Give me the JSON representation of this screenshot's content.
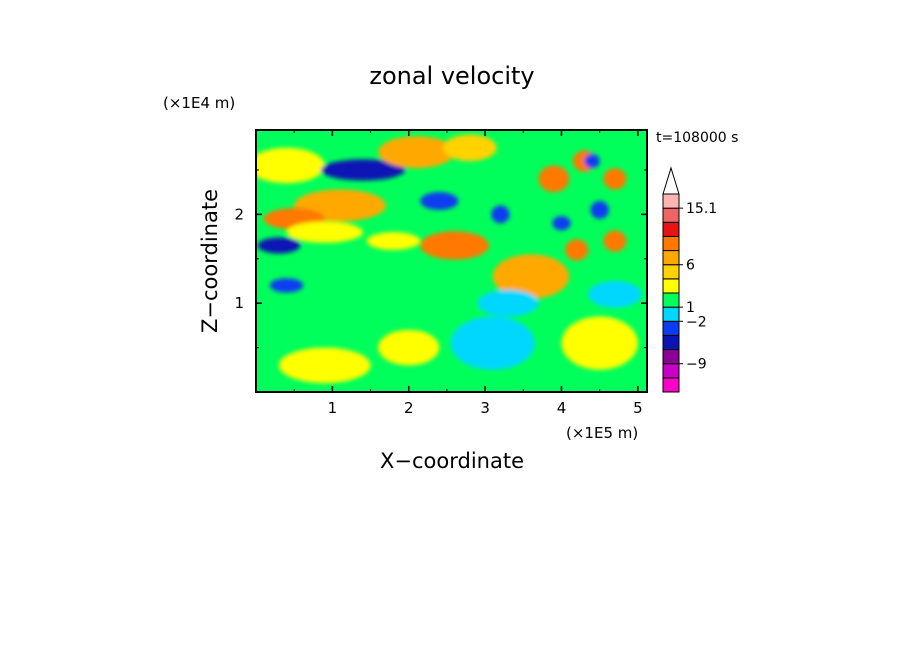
{
  "chart_data": {
    "type": "heatmap",
    "title": "zonal velocity",
    "xlabel": "X−coordinate",
    "ylabel": "Z−coordinate",
    "x_unit": "(×1E5 m)",
    "y_unit": "(×1E4 m)",
    "time_label": "t=108000 s",
    "x_ticks": [
      "1",
      "2",
      "3",
      "4",
      "5"
    ],
    "y_ticks": [
      "1",
      "2"
    ],
    "xlim": [
      0,
      5.12
    ],
    "ylim": [
      0,
      2.95
    ],
    "colorbar": {
      "tick_labels": [
        "15.1",
        "6",
        "1",
        "−2",
        "−9"
      ],
      "bins": [
        {
          "color": "#ff00c8"
        },
        {
          "color": "#c800c8"
        },
        {
          "color": "#8c0096"
        },
        {
          "color": "#0a14b4"
        },
        {
          "color": "#0a3cf0"
        },
        {
          "color": "#00d7ff"
        },
        {
          "color": "#00ff5a"
        },
        {
          "color": "#ffff00"
        },
        {
          "color": "#ffd200"
        },
        {
          "color": "#ffa800"
        },
        {
          "color": "#ff7800"
        },
        {
          "color": "#e61414"
        },
        {
          "color": "#f06464"
        },
        {
          "color": "#ffb4b4"
        }
      ],
      "extend_max_color": "#ffffff"
    },
    "field": {
      "background_color": "#00ff5a",
      "features": [
        {
          "x": 0.4,
          "z": 2.55,
          "sx": 0.5,
          "sz": 0.2,
          "level": 7
        },
        {
          "x": 1.1,
          "z": 2.1,
          "sx": 0.6,
          "sz": 0.18,
          "level": 9
        },
        {
          "x": 0.5,
          "z": 1.95,
          "sx": 0.4,
          "sz": 0.12,
          "level": 10
        },
        {
          "x": 1.4,
          "z": 2.5,
          "sx": 0.55,
          "sz": 0.12,
          "level": 3
        },
        {
          "x": 2.4,
          "z": 2.15,
          "sx": 0.25,
          "sz": 0.1,
          "level": 4
        },
        {
          "x": 0.3,
          "z": 1.65,
          "sx": 0.28,
          "sz": 0.09,
          "level": 3
        },
        {
          "x": 0.4,
          "z": 1.2,
          "sx": 0.22,
          "sz": 0.08,
          "level": 4
        },
        {
          "x": 2.1,
          "z": 2.7,
          "sx": 0.5,
          "sz": 0.18,
          "level": 9
        },
        {
          "x": 2.8,
          "z": 2.75,
          "sx": 0.35,
          "sz": 0.15,
          "level": 8
        },
        {
          "x": 2.6,
          "z": 1.65,
          "sx": 0.45,
          "sz": 0.16,
          "level": 10
        },
        {
          "x": 3.6,
          "z": 1.3,
          "sx": 0.5,
          "sz": 0.25,
          "level": 9
        },
        {
          "x": 3.9,
          "z": 2.4,
          "sx": 0.2,
          "sz": 0.15,
          "level": 10
        },
        {
          "x": 4.3,
          "z": 2.6,
          "sx": 0.15,
          "sz": 0.12,
          "level": 10
        },
        {
          "x": 4.7,
          "z": 2.4,
          "sx": 0.15,
          "sz": 0.12,
          "level": 10
        },
        {
          "x": 4.2,
          "z": 1.6,
          "sx": 0.15,
          "sz": 0.12,
          "level": 10
        },
        {
          "x": 4.7,
          "z": 1.7,
          "sx": 0.15,
          "sz": 0.12,
          "level": 10
        },
        {
          "x": 4.0,
          "z": 1.9,
          "sx": 0.12,
          "sz": 0.08,
          "level": 4
        },
        {
          "x": 4.5,
          "z": 2.05,
          "sx": 0.12,
          "sz": 0.1,
          "level": 4
        },
        {
          "x": 3.2,
          "z": 2.0,
          "sx": 0.12,
          "sz": 0.1,
          "level": 4
        },
        {
          "x": 4.4,
          "z": 2.6,
          "sx": 0.1,
          "sz": 0.08,
          "level": 4
        },
        {
          "x": 3.1,
          "z": 0.55,
          "sx": 0.55,
          "sz": 0.3,
          "level": 5
        },
        {
          "x": 3.3,
          "z": 1.0,
          "sx": 0.4,
          "sz": 0.15,
          "level": 5
        },
        {
          "x": 4.7,
          "z": 1.1,
          "sx": 0.35,
          "sz": 0.15,
          "level": 5
        },
        {
          "x": 0.9,
          "z": 0.3,
          "sx": 0.6,
          "sz": 0.2,
          "level": 7
        },
        {
          "x": 2.0,
          "z": 0.5,
          "sx": 0.4,
          "sz": 0.2,
          "level": 7
        },
        {
          "x": 4.5,
          "z": 0.55,
          "sx": 0.5,
          "sz": 0.3,
          "level": 7
        },
        {
          "x": 1.6,
          "z": 1.2,
          "sx": 0.3,
          "sz": 0.15,
          "level": 6
        },
        {
          "x": 0.9,
          "z": 1.8,
          "sx": 0.5,
          "sz": 0.12,
          "level": 7
        },
        {
          "x": 1.8,
          "z": 1.7,
          "sx": 0.35,
          "sz": 0.1,
          "level": 7
        }
      ]
    }
  }
}
